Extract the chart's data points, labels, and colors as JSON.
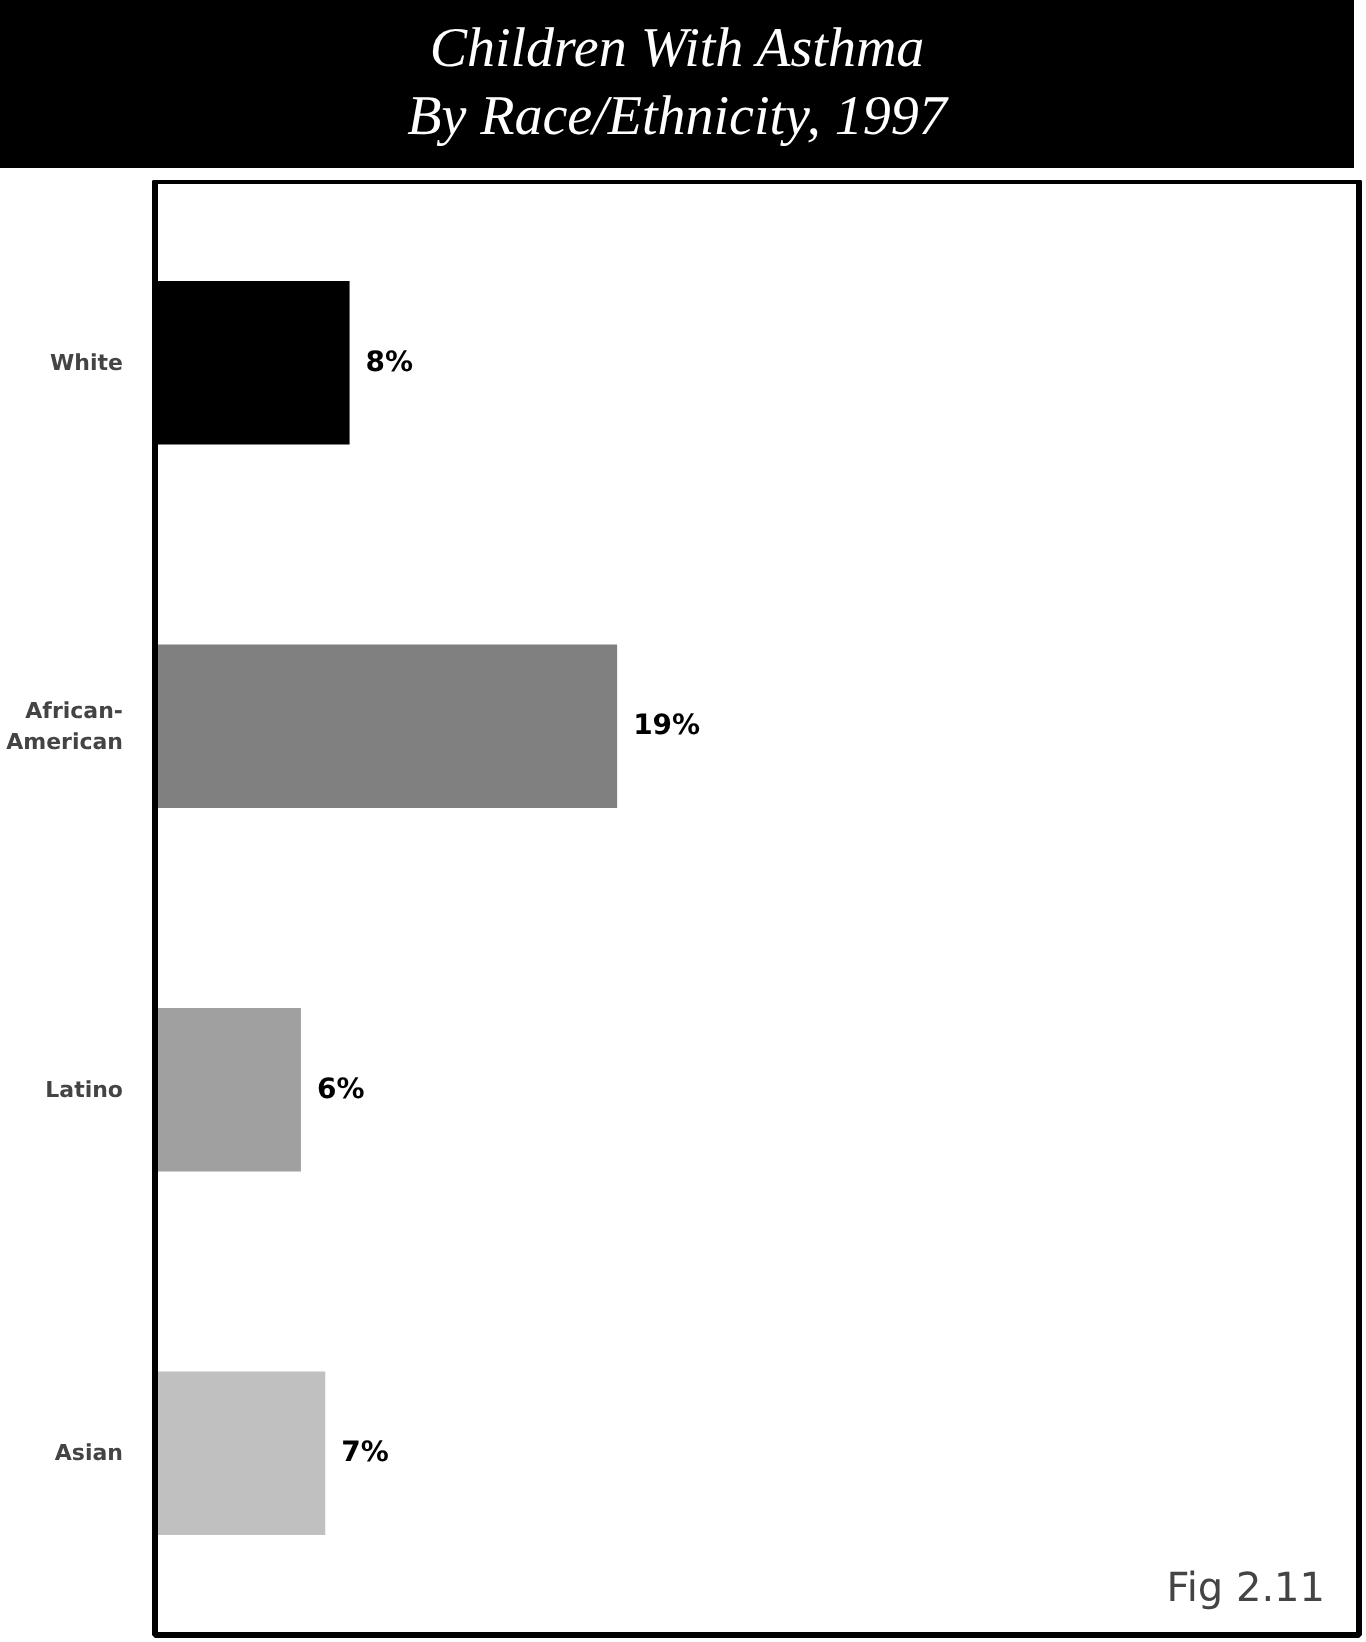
{
  "chart_data": {
    "type": "bar",
    "orientation": "horizontal",
    "title": "Children With Asthma\nBy Race/Ethnicity, 1997",
    "categories": [
      "White",
      "African-American",
      "Latino",
      "Asian"
    ],
    "values": [
      8,
      19,
      6,
      7
    ],
    "colors": [
      "#000000",
      "#808080",
      "#a0a0a0",
      "#c0c0c0"
    ],
    "xlim": [
      0,
      49.5
    ],
    "data_labels": true,
    "value_labels": [
      "8%",
      "19%",
      "6%",
      "7%"
    ],
    "tick_labels": "y",
    "grid": false,
    "annotations": [
      "Fig 2.11"
    ]
  }
}
